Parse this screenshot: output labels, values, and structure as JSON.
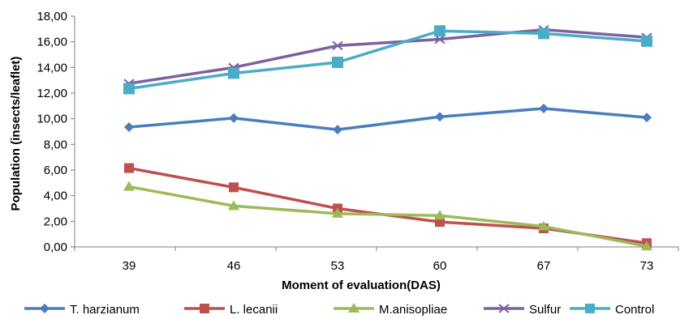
{
  "chart_data": {
    "type": "line",
    "xlabel": "Moment of evaluation(DAS)",
    "ylabel": "Population (insects/leaflet)",
    "x": [
      "39",
      "46",
      "53",
      "60",
      "67",
      "73"
    ],
    "ylim": [
      0,
      18
    ],
    "y_ticks": [
      "0,00",
      "2,00",
      "4,00",
      "6,00",
      "8,00",
      "10,00",
      "12,00",
      "14,00",
      "16,00",
      "18,00"
    ],
    "grid": false,
    "legend_position": "bottom",
    "series": [
      {
        "name": "T. harzianum",
        "color": "#4a7ebb",
        "marker": "diamond",
        "values": [
          9.35,
          10.05,
          9.15,
          10.15,
          10.8,
          10.1
        ]
      },
      {
        "name": "L. lecanii",
        "color": "#c0504d",
        "marker": "square",
        "values": [
          6.15,
          4.65,
          3.0,
          1.95,
          1.45,
          0.3
        ]
      },
      {
        "name": "M.anisopliae",
        "color": "#9bbb59",
        "marker": "triangle",
        "values": [
          4.7,
          3.2,
          2.6,
          2.45,
          1.6,
          0.05
        ]
      },
      {
        "name": "Sulfur",
        "color": "#7d60a0",
        "marker": "x",
        "values": [
          12.75,
          14.0,
          15.7,
          16.2,
          16.95,
          16.35
        ]
      },
      {
        "name": "Control",
        "color": "#4bacc6",
        "marker": "square",
        "values": [
          12.35,
          13.55,
          14.4,
          16.85,
          16.65,
          16.05
        ]
      }
    ]
  }
}
